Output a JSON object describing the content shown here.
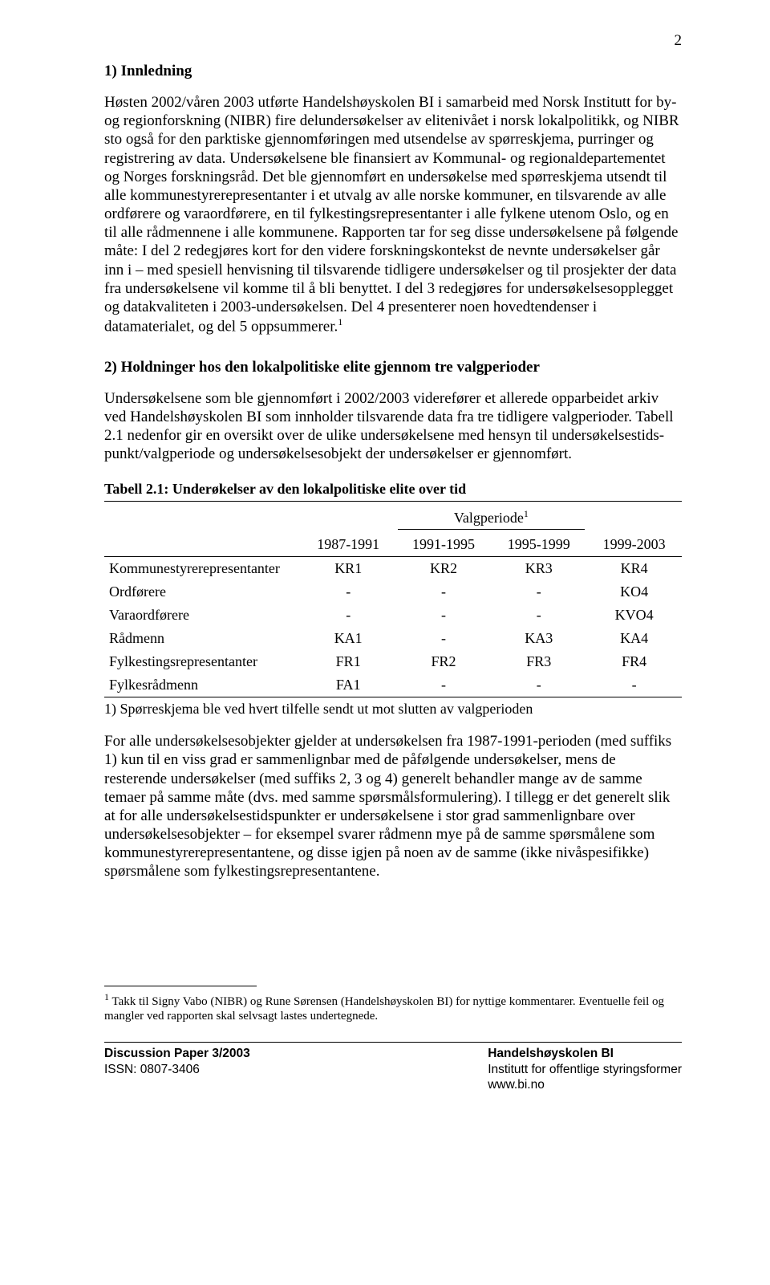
{
  "page_number": "2",
  "section1": {
    "heading": "1) Innledning",
    "para": "Høsten 2002/våren 2003 utførte Handelshøyskolen BI i samarbeid med Norsk Institutt for by- og regionforskning (NIBR) fire delundersøkelser av elitenivået i norsk lokalpolitikk, og NIBR sto også for den parktiske gjennomføringen med utsendelse av spørreskjema, purringer og registrering av data. Undersøkelsene ble finansiert av Kommunal- og regionaldepartementet og Norges forskningsråd. Det ble gjennomført en undersøkelse med spørreskjema utsendt til alle kommunestyrerepresentanter i et utvalg av alle norske kommuner, en tilsvarende av alle ordførere og varaordførere, en til fylkestingsrepresentanter i alle fylkene utenom Oslo, og en til alle rådmennene i alle kommunene. Rapporten tar for seg disse undersøkelsene på følgende måte: I del 2 redegjøres kort for den videre forskningskontekst de nevnte undersøkelser går inn i – med spesiell henvisning til tilsvarende tidligere undersøkelser og til prosjekter der data fra undersøkelsene vil komme til å bli benyttet. I del 3 redegjøres for undersøkelsesopplegget og datakvaliteten i 2003-undersøkelsen. Del 4 presenterer noen hovedtendenser i datamaterialet, og del 5 oppsummerer.",
    "para_footref": "1"
  },
  "section2": {
    "heading": "2) Holdninger hos den lokalpolitiske elite gjennom tre valgperioder",
    "para": "Undersøkelsene som ble gjennomført i 2002/2003 viderefører et allerede opparbeidet arkiv ved Handelshøyskolen BI som innholder tilsvarende data fra tre tidligere valgperioder. Tabell 2.1 nedenfor gir en oversikt over de ulike undersøkelsene med hensyn til undersøkelsestids­punkt/valgperiode og undersøkelsesobjekt der undersøkelser er gjennomført."
  },
  "table": {
    "title": "Tabell 2.1: Underøkelser av den lokalpolitiske elite over tid",
    "spanner": "Valgperiode",
    "spanner_sup": "1",
    "columns": [
      "1987-1991",
      "1991-1995",
      "1995-1999",
      "1999-2003"
    ],
    "rows": [
      {
        "label": "Kommunestyrerepresentanter",
        "cells": [
          "KR1",
          "KR2",
          "KR3",
          "KR4"
        ]
      },
      {
        "label": "Ordførere",
        "cells": [
          "-",
          "-",
          "-",
          "KO4"
        ]
      },
      {
        "label": "Varaordførere",
        "cells": [
          "-",
          "-",
          "-",
          "KVO4"
        ]
      },
      {
        "label": "Rådmenn",
        "cells": [
          "KA1",
          "-",
          "KA3",
          "KA4"
        ]
      },
      {
        "label": "Fylkestingsrepresentanter",
        "cells": [
          "FR1",
          "FR2",
          "FR3",
          "FR4"
        ]
      },
      {
        "label": "Fylkesrådmenn",
        "cells": [
          "FA1",
          "-",
          "-",
          "-"
        ]
      }
    ],
    "note": "1) Spørreskjema ble ved hvert tilfelle sendt ut mot slutten av valgperioden"
  },
  "after_table_para": "For alle undersøkelsesobjekter gjelder at undersøkelsen fra 1987-1991-perioden (med suffiks 1) kun til en viss grad er sammenlignbar med de påfølgende undersøkelser, mens de resterende undersøkelser (med suffiks 2, 3 og 4) generelt behandler mange av de samme temaer på samme måte (dvs. med samme spørsmålsformulering). I tillegg er det generelt slik at for alle under­søkelsestidspunkter er undersøkelsene i stor grad sammenlignbare over undersøkelsesobjekter – for eksempel svarer rådmenn mye på de samme spørsmålene som kommunestyrerepresentantene, og disse igjen på noen av de samme (ikke nivåspesifikke) spørsmålene som fylkes­tingsrepresentantene.",
  "footnote": {
    "ref": "1",
    "text": " Takk til Signy Vabo (NIBR) og Rune Sørensen (Handelshøyskolen BI) for nyttige kommentarer. Eventuelle feil og mangler ved rapporten skal selvsagt lastes undertegnede."
  },
  "footer": {
    "left_line1": "Discussion Paper 3/2003",
    "left_line2": "ISSN: 0807-3406",
    "right_line1": "Handelshøyskolen BI",
    "right_line2": "Institutt for offentlige styringsformer",
    "right_line3": "www.bi.no"
  }
}
